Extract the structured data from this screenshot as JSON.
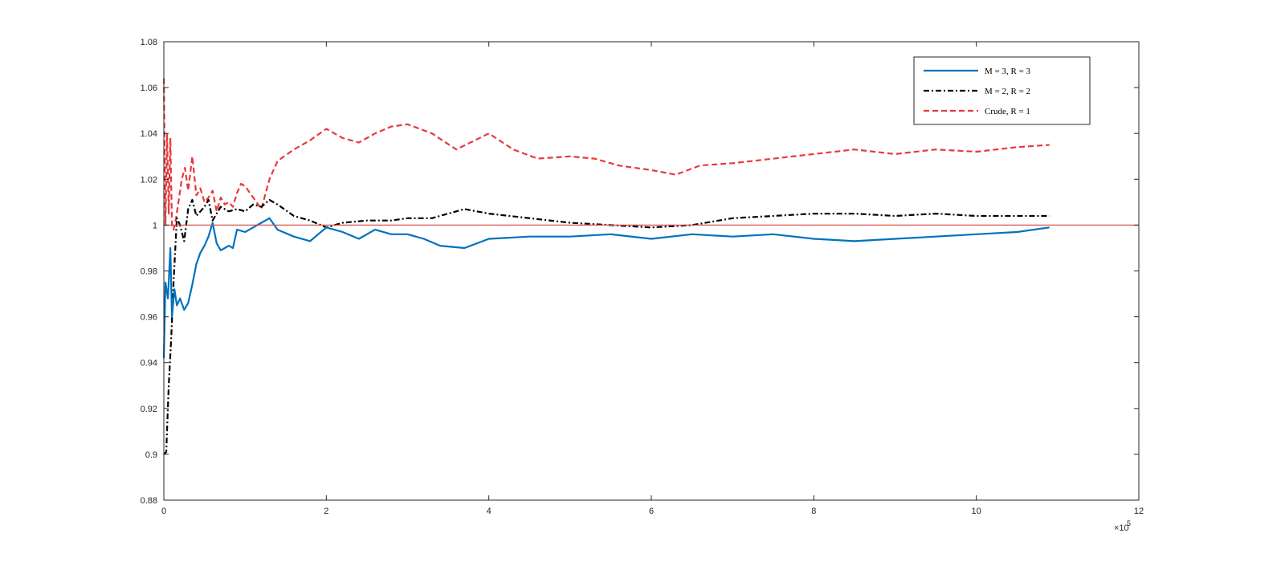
{
  "chart_data": {
    "type": "line",
    "title": "",
    "xlabel": "",
    "ylabel": "",
    "xlim": [
      0,
      12
    ],
    "ylim": [
      0.88,
      1.08
    ],
    "x_multiplier_label": "×10",
    "x_multiplier_exponent": "5",
    "xticks": [
      0,
      2,
      4,
      6,
      8,
      10,
      12
    ],
    "xtick_labels": [
      "0",
      "2",
      "4",
      "6",
      "8",
      "10",
      "12"
    ],
    "yticks": [
      0.88,
      0.9,
      0.92,
      0.94,
      0.96,
      0.98,
      1.0,
      1.02,
      1.04,
      1.06,
      1.08
    ],
    "ytick_labels": [
      "0.88",
      "0.9",
      "0.92",
      "0.94",
      "0.96",
      "0.98",
      "1",
      "1.02",
      "1.04",
      "1.06",
      "1.08"
    ],
    "grid": false,
    "legend_position": "top-right",
    "reference_line": {
      "y": 1.0,
      "color": "#d9534f"
    },
    "series": [
      {
        "name": "M = 3, R = 3",
        "color": "#0072bd",
        "style": "solid",
        "x": [
          0.0,
          0.02,
          0.05,
          0.08,
          0.1,
          0.13,
          0.16,
          0.2,
          0.25,
          0.3,
          0.35,
          0.4,
          0.45,
          0.5,
          0.55,
          0.6,
          0.65,
          0.7,
          0.75,
          0.8,
          0.85,
          0.9,
          1.0,
          1.1,
          1.2,
          1.3,
          1.4,
          1.6,
          1.8,
          2.0,
          2.2,
          2.4,
          2.6,
          2.8,
          3.0,
          3.2,
          3.4,
          3.7,
          4.0,
          4.5,
          5.0,
          5.5,
          6.0,
          6.5,
          7.0,
          7.5,
          8.0,
          8.5,
          9.0,
          9.5,
          10.0,
          10.5,
          10.9
        ],
        "values": [
          0.942,
          0.975,
          0.968,
          0.99,
          0.96,
          0.972,
          0.965,
          0.968,
          0.963,
          0.966,
          0.974,
          0.983,
          0.988,
          0.991,
          0.995,
          1.001,
          0.992,
          0.989,
          0.99,
          0.991,
          0.99,
          0.998,
          0.997,
          0.999,
          1.001,
          1.003,
          0.998,
          0.995,
          0.993,
          0.999,
          0.997,
          0.994,
          0.998,
          0.996,
          0.996,
          0.994,
          0.991,
          0.99,
          0.994,
          0.995,
          0.995,
          0.996,
          0.994,
          0.996,
          0.995,
          0.996,
          0.994,
          0.993,
          0.994,
          0.995,
          0.996,
          0.997,
          0.999
        ]
      },
      {
        "name": "M = 2, R = 2",
        "color": "#000000",
        "style": "dashdot",
        "x": [
          0.0,
          0.03,
          0.06,
          0.09,
          0.12,
          0.16,
          0.2,
          0.25,
          0.3,
          0.35,
          0.4,
          0.45,
          0.5,
          0.55,
          0.6,
          0.7,
          0.8,
          0.9,
          1.0,
          1.1,
          1.2,
          1.3,
          1.4,
          1.6,
          1.8,
          2.0,
          2.2,
          2.5,
          2.8,
          3.0,
          3.3,
          3.7,
          4.0,
          4.5,
          5.0,
          5.5,
          6.0,
          6.5,
          7.0,
          7.5,
          8.0,
          8.5,
          9.0,
          9.5,
          10.0,
          10.5,
          10.9
        ],
        "values": [
          0.9,
          0.901,
          0.93,
          0.95,
          0.975,
          1.003,
          1.0,
          0.993,
          1.007,
          1.011,
          1.004,
          1.006,
          1.008,
          1.011,
          1.002,
          1.008,
          1.006,
          1.007,
          1.006,
          1.009,
          1.008,
          1.011,
          1.009,
          1.004,
          1.002,
          0.999,
          1.001,
          1.002,
          1.002,
          1.003,
          1.003,
          1.007,
          1.005,
          1.003,
          1.001,
          1.0,
          0.999,
          1.0,
          1.003,
          1.004,
          1.005,
          1.005,
          1.004,
          1.005,
          1.004,
          1.004,
          1.004
        ]
      },
      {
        "name": "Crude, R = 1",
        "color": "#e8393b",
        "style": "dashed",
        "x": [
          0.0,
          0.02,
          0.04,
          0.06,
          0.08,
          0.1,
          0.12,
          0.15,
          0.18,
          0.22,
          0.26,
          0.3,
          0.35,
          0.4,
          0.45,
          0.5,
          0.55,
          0.6,
          0.65,
          0.7,
          0.75,
          0.8,
          0.85,
          0.9,
          0.95,
          1.0,
          1.1,
          1.2,
          1.3,
          1.4,
          1.6,
          1.8,
          2.0,
          2.2,
          2.4,
          2.6,
          2.8,
          3.0,
          3.3,
          3.6,
          4.0,
          4.3,
          4.6,
          5.0,
          5.3,
          5.6,
          6.0,
          6.3,
          6.6,
          7.0,
          7.5,
          8.0,
          8.5,
          9.0,
          9.5,
          10.0,
          10.5,
          10.9
        ],
        "values": [
          1.064,
          1.0,
          1.04,
          1.005,
          1.038,
          1.0,
          0.998,
          1.003,
          1.01,
          1.02,
          1.025,
          1.015,
          1.03,
          1.013,
          1.016,
          1.01,
          1.012,
          1.015,
          1.006,
          1.012,
          1.009,
          1.01,
          1.008,
          1.014,
          1.018,
          1.017,
          1.012,
          1.007,
          1.02,
          1.028,
          1.033,
          1.037,
          1.042,
          1.038,
          1.036,
          1.04,
          1.043,
          1.044,
          1.04,
          1.033,
          1.04,
          1.033,
          1.029,
          1.03,
          1.029,
          1.026,
          1.024,
          1.022,
          1.026,
          1.027,
          1.029,
          1.031,
          1.033,
          1.031,
          1.033,
          1.032,
          1.034,
          1.035
        ]
      }
    ]
  }
}
